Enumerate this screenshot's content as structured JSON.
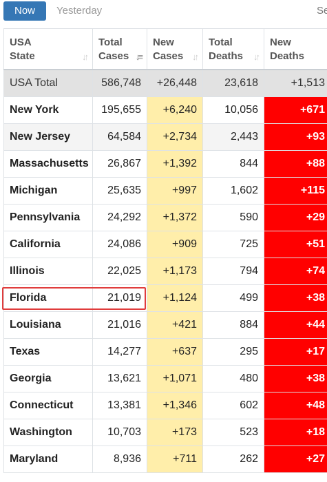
{
  "tabs": {
    "now": "Now",
    "yesterday": "Yesterday",
    "search": "Se"
  },
  "colors": {
    "accent_tab": "#3577b5",
    "new_cases_bg": "#ffeeaa",
    "new_deaths_bg": "#ff0000",
    "highlight_border": "#e03c3c"
  },
  "table": {
    "headers": [
      {
        "line1": "USA",
        "line2": "State"
      },
      {
        "line1": "Total",
        "line2": "Cases"
      },
      {
        "line1": "New",
        "line2": "Cases"
      },
      {
        "line1": "Total",
        "line2": "Deaths"
      },
      {
        "line1": "New",
        "line2": "Deaths"
      }
    ],
    "total_row": {
      "state": "USA Total",
      "total_cases": "586,748",
      "new_cases": "+26,448",
      "total_deaths": "23,618",
      "new_deaths": "+1,513"
    },
    "rows": [
      {
        "state": "New York",
        "total_cases": "195,655",
        "new_cases": "+6,240",
        "total_deaths": "10,056",
        "new_deaths": "+671"
      },
      {
        "state": "New Jersey",
        "total_cases": "64,584",
        "new_cases": "+2,734",
        "total_deaths": "2,443",
        "new_deaths": "+93"
      },
      {
        "state": "Massachusetts",
        "total_cases": "26,867",
        "new_cases": "+1,392",
        "total_deaths": "844",
        "new_deaths": "+88"
      },
      {
        "state": "Michigan",
        "total_cases": "25,635",
        "new_cases": "+997",
        "total_deaths": "1,602",
        "new_deaths": "+115"
      },
      {
        "state": "Pennsylvania",
        "total_cases": "24,292",
        "new_cases": "+1,372",
        "total_deaths": "590",
        "new_deaths": "+29"
      },
      {
        "state": "California",
        "total_cases": "24,086",
        "new_cases": "+909",
        "total_deaths": "725",
        "new_deaths": "+51"
      },
      {
        "state": "Illinois",
        "total_cases": "22,025",
        "new_cases": "+1,173",
        "total_deaths": "794",
        "new_deaths": "+74"
      },
      {
        "state": "Florida",
        "total_cases": "21,019",
        "new_cases": "+1,124",
        "total_deaths": "499",
        "new_deaths": "+38"
      },
      {
        "state": "Louisiana",
        "total_cases": "21,016",
        "new_cases": "+421",
        "total_deaths": "884",
        "new_deaths": "+44"
      },
      {
        "state": "Texas",
        "total_cases": "14,277",
        "new_cases": "+637",
        "total_deaths": "295",
        "new_deaths": "+17"
      },
      {
        "state": "Georgia",
        "total_cases": "13,621",
        "new_cases": "+1,071",
        "total_deaths": "480",
        "new_deaths": "+38"
      },
      {
        "state": "Connecticut",
        "total_cases": "13,381",
        "new_cases": "+1,346",
        "total_deaths": "602",
        "new_deaths": "+48"
      },
      {
        "state": "Washington",
        "total_cases": "10,703",
        "new_cases": "+173",
        "total_deaths": "523",
        "new_deaths": "+18"
      },
      {
        "state": "Maryland",
        "total_cases": "8,936",
        "new_cases": "+711",
        "total_deaths": "262",
        "new_deaths": "+27"
      }
    ]
  },
  "highlighted_state": "Florida"
}
